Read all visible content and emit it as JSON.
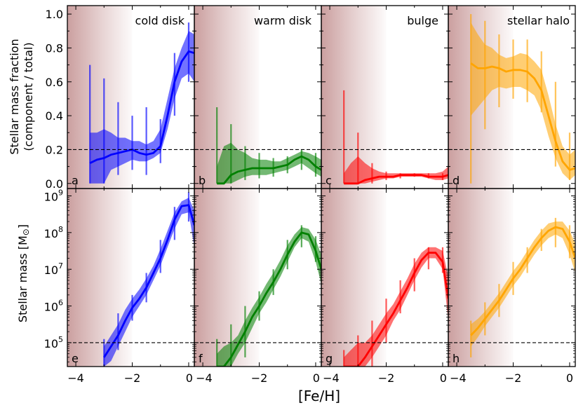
{
  "figure": {
    "xlabel": "[Fe/H]",
    "ylabel_top_line1": "Stellar mass fraction",
    "ylabel_top_line2": "(component / total)",
    "ylabel_bottom_main": "Stellar mass [M",
    "ylabel_bottom_sym": "⊙",
    "ylabel_bottom_end": "]",
    "shading_note": "",
    "colors": {
      "cold disk": "#0000ff",
      "warm disk": "#008000",
      "bulge": "#ff0000",
      "stellar halo": "#ffa500",
      "shade": "#8b2a2a"
    }
  },
  "chart_data": [
    {
      "type": "area",
      "panel": "fraction",
      "title": "",
      "xlabel": "[Fe/H]",
      "ylabel": "Stellar mass fraction (component / total)",
      "xlim": [
        -4.3,
        0.2
      ],
      "ylim": [
        -0.03,
        1.05
      ],
      "xticks": [
        -4,
        -2,
        0
      ],
      "yticks": [
        0.0,
        0.2,
        0.4,
        0.6,
        0.8,
        1.0
      ],
      "ytick_labels": [
        "0.0",
        "0.2",
        "0.4",
        "0.6",
        "0.8",
        "1.0"
      ],
      "reference_line": 0.2,
      "shaded_region_x": [
        -4.3,
        -2.0
      ],
      "components": [
        {
          "name": "cold disk",
          "letter": "a",
          "x": [
            -3.5,
            -3.25,
            -3.0,
            -2.75,
            -2.5,
            -2.25,
            -2.0,
            -1.75,
            -1.5,
            -1.25,
            -1.0,
            -0.75,
            -0.5,
            -0.25,
            0.0,
            0.2
          ],
          "median": [
            0.12,
            0.14,
            0.15,
            0.17,
            0.18,
            0.19,
            0.2,
            0.18,
            0.17,
            0.18,
            0.22,
            0.4,
            0.6,
            0.72,
            0.78,
            0.77
          ],
          "lo": [
            0.0,
            0.0,
            0.0,
            0.08,
            0.1,
            0.12,
            0.14,
            0.13,
            0.13,
            0.15,
            0.18,
            0.32,
            0.5,
            0.62,
            0.65,
            0.6
          ],
          "hi": [
            0.3,
            0.3,
            0.32,
            0.3,
            0.27,
            0.27,
            0.25,
            0.25,
            0.23,
            0.25,
            0.32,
            0.5,
            0.68,
            0.8,
            0.9,
            0.88
          ],
          "errx": [
            -3.5,
            -3.0,
            -2.5,
            -2.0,
            -1.5,
            -1.0,
            -0.5,
            0.0
          ],
          "errlo": [
            0.0,
            0.0,
            0.05,
            0.08,
            0.05,
            0.12,
            0.4,
            0.6
          ],
          "errhi": [
            0.7,
            0.62,
            0.48,
            0.4,
            0.45,
            0.38,
            0.77,
            0.95
          ]
        },
        {
          "name": "warm disk",
          "letter": "b",
          "x": [
            -3.5,
            -3.25,
            -3.0,
            -2.75,
            -2.5,
            -2.25,
            -2.0,
            -1.75,
            -1.5,
            -1.25,
            -1.0,
            -0.75,
            -0.5,
            -0.25,
            0.0,
            0.2
          ],
          "median": [
            0.0,
            0.0,
            0.05,
            0.07,
            0.08,
            0.09,
            0.09,
            0.09,
            0.09,
            0.1,
            0.11,
            0.14,
            0.16,
            0.14,
            0.1,
            0.08
          ],
          "lo": [
            0.0,
            0.0,
            0.0,
            0.02,
            0.04,
            0.05,
            0.05,
            0.05,
            0.06,
            0.07,
            0.08,
            0.1,
            0.12,
            0.09,
            0.06,
            0.04
          ],
          "hi": [
            0.1,
            0.22,
            0.24,
            0.2,
            0.18,
            0.15,
            0.14,
            0.14,
            0.13,
            0.13,
            0.15,
            0.17,
            0.19,
            0.18,
            0.16,
            0.14
          ],
          "errx": [
            -3.5,
            -3.0,
            -2.5,
            -2.0,
            -1.5,
            -1.0,
            -0.5,
            0.0
          ],
          "errlo": [
            0.0,
            0.0,
            0.02,
            0.03,
            0.04,
            0.06,
            0.08,
            0.04
          ],
          "errhi": [
            0.45,
            0.35,
            0.22,
            0.18,
            0.15,
            0.16,
            0.2,
            0.18
          ]
        },
        {
          "name": "bulge",
          "letter": "c",
          "x": [
            -3.5,
            -3.25,
            -3.0,
            -2.75,
            -2.5,
            -2.25,
            -2.0,
            -1.75,
            -1.5,
            -1.25,
            -1.0,
            -0.75,
            -0.5,
            -0.25,
            0.0,
            0.2
          ],
          "median": [
            0.0,
            0.0,
            0.0,
            0.02,
            0.03,
            0.04,
            0.04,
            0.04,
            0.05,
            0.05,
            0.05,
            0.05,
            0.04,
            0.04,
            0.04,
            0.05
          ],
          "lo": [
            0.0,
            0.0,
            0.0,
            0.0,
            0.01,
            0.02,
            0.03,
            0.03,
            0.04,
            0.04,
            0.04,
            0.04,
            0.03,
            0.02,
            0.02,
            0.03
          ],
          "hi": [
            0.06,
            0.12,
            0.16,
            0.12,
            0.09,
            0.07,
            0.06,
            0.06,
            0.06,
            0.06,
            0.06,
            0.06,
            0.06,
            0.06,
            0.07,
            0.1
          ],
          "errx": [
            -3.5,
            -3.0,
            -2.5,
            -2.0,
            -1.5,
            -1.0,
            -0.5,
            0.0
          ],
          "errlo": [
            0.0,
            0.0,
            0.0,
            0.02,
            0.03,
            0.04,
            0.03,
            0.02
          ],
          "errhi": [
            0.55,
            0.3,
            0.12,
            0.07,
            0.06,
            0.06,
            0.06,
            0.06
          ]
        },
        {
          "name": "stellar halo",
          "letter": "d",
          "x": [
            -3.5,
            -3.25,
            -3.0,
            -2.75,
            -2.5,
            -2.25,
            -2.0,
            -1.75,
            -1.5,
            -1.25,
            -1.0,
            -0.75,
            -0.5,
            -0.25,
            0.0,
            0.2
          ],
          "median": [
            0.71,
            0.68,
            0.68,
            0.69,
            0.68,
            0.66,
            0.67,
            0.67,
            0.66,
            0.62,
            0.55,
            0.4,
            0.25,
            0.13,
            0.08,
            0.09
          ],
          "lo": [
            0.4,
            0.45,
            0.5,
            0.55,
            0.57,
            0.56,
            0.57,
            0.57,
            0.55,
            0.52,
            0.43,
            0.28,
            0.15,
            0.06,
            0.02,
            0.05
          ],
          "hi": [
            0.95,
            0.88,
            0.82,
            0.8,
            0.76,
            0.74,
            0.75,
            0.77,
            0.76,
            0.72,
            0.67,
            0.52,
            0.35,
            0.22,
            0.17,
            0.2
          ],
          "errx": [
            -3.5,
            -3.0,
            -2.5,
            -2.0,
            -1.5,
            -1.0,
            -0.5,
            0.0
          ],
          "errlo": [
            0.0,
            0.32,
            0.45,
            0.5,
            0.48,
            0.42,
            0.1,
            0.02
          ],
          "errhi": [
            1.0,
            0.96,
            0.88,
            0.85,
            0.85,
            0.78,
            0.6,
            0.3
          ]
        }
      ]
    },
    {
      "type": "area",
      "panel": "mass",
      "title": "",
      "xlabel": "[Fe/H]",
      "ylabel": "Stellar mass [M⊙]",
      "yscale": "log",
      "xlim": [
        -4.3,
        0.2
      ],
      "ylim_log10": [
        4.35,
        9.2
      ],
      "xticks": [
        -4,
        -2,
        0
      ],
      "xtick_labels": [
        "−4",
        "−2",
        "0"
      ],
      "ytick_exponents": [
        5,
        6,
        7,
        8,
        9
      ],
      "ytick_base": "10",
      "reference_line_log10": 5.0,
      "shaded_region_x": [
        -4.3,
        -2.0
      ],
      "components": [
        {
          "name": "cold disk",
          "letter": "e",
          "x": [
            -3.0,
            -2.75,
            -2.5,
            -2.25,
            -2.0,
            -1.75,
            -1.5,
            -1.25,
            -1.0,
            -0.75,
            -0.5,
            -0.25,
            0.0,
            0.2
          ],
          "median": [
            4.6,
            4.9,
            5.2,
            5.6,
            5.95,
            6.2,
            6.5,
            6.9,
            7.3,
            7.8,
            8.35,
            8.72,
            8.75,
            8.2
          ],
          "lo": [
            4.35,
            4.5,
            4.9,
            5.3,
            5.7,
            6.0,
            6.3,
            6.7,
            7.1,
            7.6,
            8.1,
            8.5,
            8.55,
            7.6
          ],
          "hi": [
            4.9,
            5.2,
            5.5,
            5.9,
            6.2,
            6.45,
            6.75,
            7.1,
            7.55,
            8.05,
            8.55,
            8.85,
            8.95,
            8.6
          ],
          "errx": [
            -3.0,
            -2.5,
            -2.0,
            -1.5,
            -1.0,
            -0.5,
            0.0
          ],
          "errlo": [
            4.35,
            4.8,
            5.6,
            6.1,
            6.9,
            7.8,
            8.3
          ],
          "errhi": [
            5.1,
            5.8,
            6.3,
            6.9,
            7.8,
            8.7,
            9.1
          ]
        },
        {
          "name": "warm disk",
          "letter": "f",
          "x": [
            -3.5,
            -3.25,
            -3.0,
            -2.75,
            -2.5,
            -2.25,
            -2.0,
            -1.75,
            -1.5,
            -1.25,
            -1.0,
            -0.75,
            -0.5,
            -0.25,
            0.0,
            0.2
          ],
          "median": [
            4.35,
            4.35,
            4.6,
            4.95,
            5.3,
            5.7,
            6.0,
            6.35,
            6.65,
            7.0,
            7.4,
            7.75,
            8.0,
            7.95,
            7.5,
            7.0
          ],
          "lo": [
            4.35,
            4.35,
            4.35,
            4.7,
            5.0,
            5.4,
            5.8,
            6.1,
            6.45,
            6.8,
            7.2,
            7.6,
            7.85,
            7.75,
            7.2,
            6.6
          ],
          "hi": [
            4.7,
            4.9,
            5.0,
            5.2,
            5.6,
            5.95,
            6.25,
            6.6,
            6.9,
            7.25,
            7.65,
            7.95,
            8.15,
            8.1,
            7.8,
            7.4
          ],
          "errx": [
            -3.5,
            -3.0,
            -2.5,
            -2.0,
            -1.5,
            -1.0,
            -0.5,
            0.0
          ],
          "errlo": [
            4.35,
            4.35,
            4.6,
            5.6,
            6.3,
            7.0,
            7.6,
            7.2
          ],
          "errhi": [
            5.1,
            5.5,
            6.0,
            6.4,
            7.0,
            7.8,
            8.2,
            7.9
          ]
        },
        {
          "name": "bulge",
          "letter": "g",
          "x": [
            -3.5,
            -3.25,
            -3.0,
            -2.75,
            -2.5,
            -2.25,
            -2.0,
            -1.75,
            -1.5,
            -1.25,
            -1.0,
            -0.75,
            -0.5,
            -0.25,
            0.0,
            0.2
          ],
          "median": [
            4.35,
            4.35,
            4.35,
            4.6,
            4.9,
            5.2,
            5.5,
            5.8,
            6.15,
            6.5,
            6.9,
            7.25,
            7.45,
            7.45,
            7.2,
            6.2
          ],
          "lo": [
            4.35,
            4.35,
            4.35,
            4.35,
            4.6,
            4.9,
            5.2,
            5.6,
            5.9,
            6.3,
            6.7,
            7.05,
            7.3,
            7.3,
            7.0,
            5.6
          ],
          "hi": [
            4.6,
            4.8,
            5.0,
            5.0,
            5.2,
            5.5,
            5.8,
            6.05,
            6.4,
            6.75,
            7.15,
            7.45,
            7.6,
            7.6,
            7.5,
            6.8
          ],
          "errx": [
            -3.5,
            -3.0,
            -2.5,
            -2.0,
            -1.5,
            -1.0,
            -0.5,
            0.0
          ],
          "errlo": [
            4.35,
            4.35,
            4.35,
            5.0,
            5.8,
            6.4,
            7.0,
            6.9
          ],
          "errhi": [
            4.8,
            5.2,
            5.6,
            6.2,
            6.7,
            7.3,
            7.6,
            7.6
          ]
        },
        {
          "name": "stellar halo",
          "letter": "h",
          "x": [
            -3.5,
            -3.25,
            -3.0,
            -2.75,
            -2.5,
            -2.25,
            -2.0,
            -1.75,
            -1.5,
            -1.25,
            -1.0,
            -0.75,
            -0.5,
            -0.25,
            0.0,
            0.2
          ],
          "median": [
            5.2,
            5.4,
            5.65,
            5.9,
            6.15,
            6.45,
            6.75,
            7.0,
            7.3,
            7.6,
            7.85,
            8.05,
            8.15,
            8.1,
            7.75,
            7.3
          ],
          "lo": [
            4.9,
            5.15,
            5.45,
            5.7,
            5.95,
            6.25,
            6.55,
            6.8,
            7.1,
            7.4,
            7.65,
            7.85,
            7.95,
            7.85,
            7.4,
            6.9
          ],
          "hi": [
            5.5,
            5.65,
            5.85,
            6.1,
            6.35,
            6.65,
            6.95,
            7.2,
            7.5,
            7.8,
            8.05,
            8.25,
            8.3,
            8.3,
            8.05,
            7.7
          ],
          "errx": [
            -3.5,
            -3.0,
            -2.5,
            -2.0,
            -1.5,
            -1.0,
            -0.5,
            0.0
          ],
          "errlo": [
            4.6,
            5.2,
            5.7,
            6.3,
            6.9,
            7.5,
            7.6,
            7.3
          ],
          "errhi": [
            5.6,
            6.1,
            6.6,
            7.2,
            7.6,
            8.1,
            8.4,
            8.2
          ]
        }
      ]
    }
  ]
}
